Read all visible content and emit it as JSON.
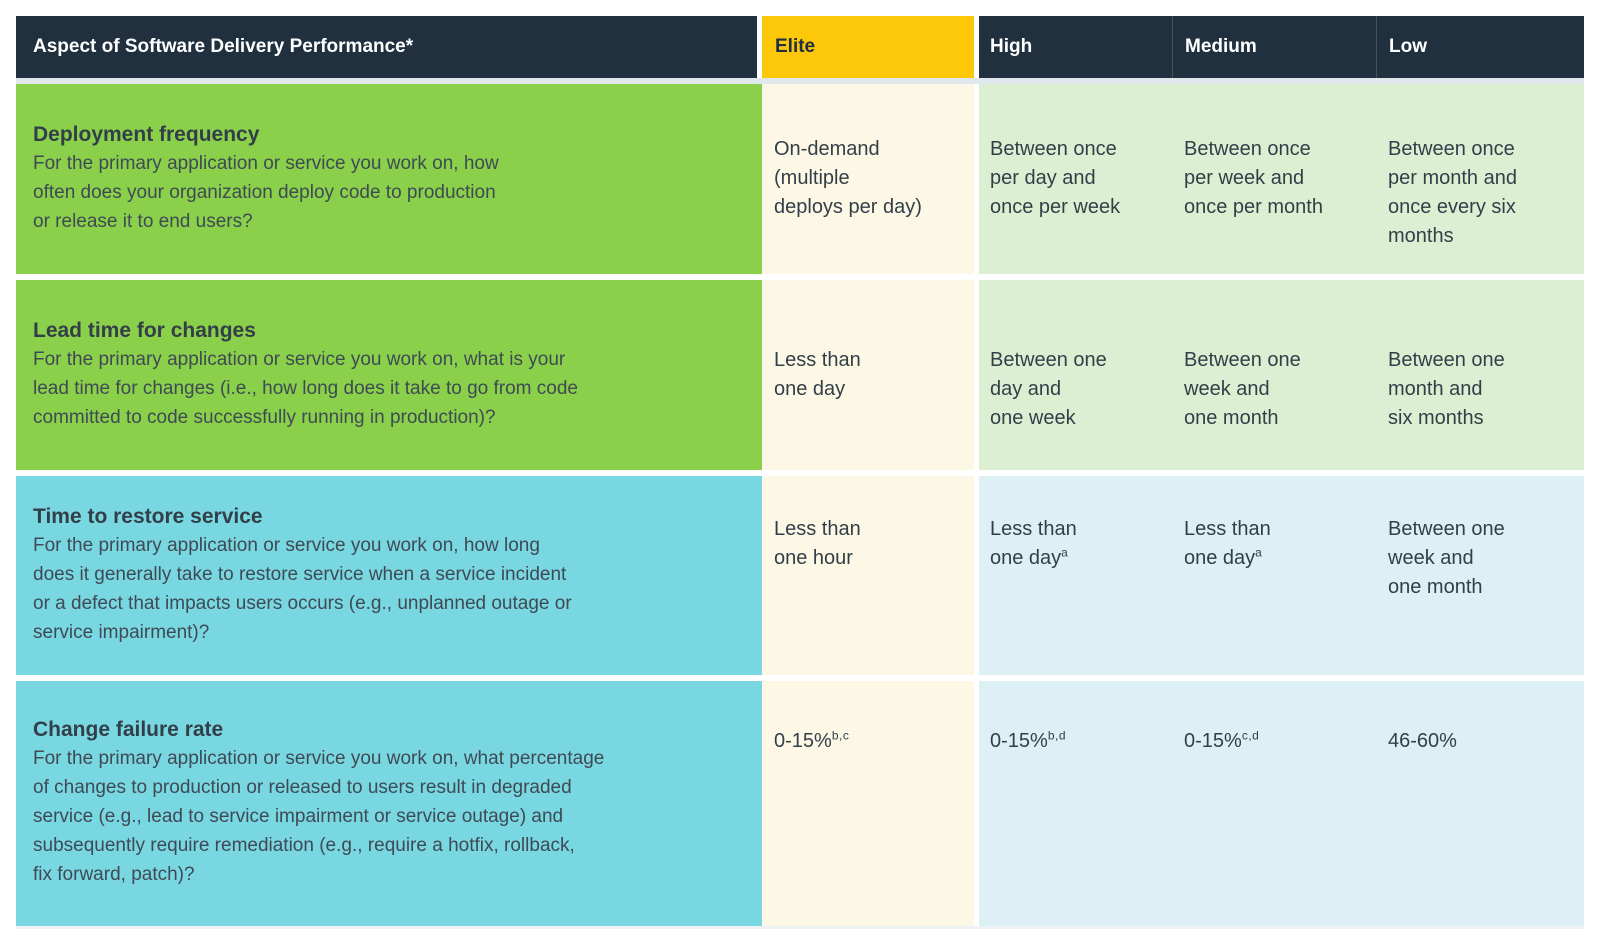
{
  "title": "DORA software delivery performance metrics table",
  "colors": {
    "header_navy": "#20303f",
    "elite_yellow": "#fdc70a",
    "aspect_green": "#8bd04a",
    "aspect_teal": "#79d7e2",
    "elite_cream": "#fdf7e6",
    "cells_light_green": "#ddefd2",
    "cells_light_blue": "#ddf0f5",
    "text_dark": "#333f48",
    "header_text_white": "#ffffff"
  },
  "header": {
    "aspect_label": "Aspect of Software Delivery Performance*",
    "columns": [
      {
        "label": "Elite"
      },
      {
        "label": "High"
      },
      {
        "label": "Medium"
      },
      {
        "label": "Low"
      }
    ]
  },
  "rows": [
    {
      "theme": "green",
      "aspect": {
        "title": "Deployment frequency",
        "description": "For the primary application or service you work on, how\noften does your organization deploy code to production\nor release it to end users?"
      },
      "cells": [
        {
          "text": "On-demand\n(multiple\ndeploys per day)",
          "sup": ""
        },
        {
          "text": "Between once\nper day and\nonce per week",
          "sup": ""
        },
        {
          "text": "Between once\nper week and\nonce per month",
          "sup": ""
        },
        {
          "text": "Between once\nper month and\nonce every six\nmonths",
          "sup": ""
        }
      ]
    },
    {
      "theme": "green",
      "aspect": {
        "title": "Lead time for changes",
        "description": "For the primary application or service you work on, what is your\nlead time for changes (i.e., how long does it take to go from code\ncommitted to code successfully running in production)?"
      },
      "cells": [
        {
          "text": "Less than\none day",
          "sup": ""
        },
        {
          "text": "Between one\nday and\none week",
          "sup": ""
        },
        {
          "text": "Between one\nweek and\none month",
          "sup": ""
        },
        {
          "text": "Between one\nmonth and\nsix months",
          "sup": ""
        }
      ]
    },
    {
      "theme": "teal",
      "aspect": {
        "title": "Time to restore service",
        "description": "For the primary application or service you work on, how long\ndoes it generally take to restore service when a service incident\nor a defect that impacts users occurs (e.g., unplanned outage or\nservice impairment)?"
      },
      "cells": [
        {
          "text": "Less than\none hour",
          "sup": ""
        },
        {
          "text": "Less than\none day",
          "sup": "a"
        },
        {
          "text": "Less than\none day",
          "sup": "a"
        },
        {
          "text": "Between one\nweek and\none month",
          "sup": ""
        }
      ]
    },
    {
      "theme": "teal",
      "aspect": {
        "title": "Change failure rate",
        "description": "For the primary application or service you work on, what percentage\nof changes to production or released to users result in degraded\nservice (e.g., lead to service impairment or service outage) and\nsubsequently require remediation (e.g., require a hotfix, rollback,\nfix forward, patch)?"
      },
      "cells": [
        {
          "text": "0-15%",
          "sup": "b,c"
        },
        {
          "text": "0-15%",
          "sup": "b,d"
        },
        {
          "text": "0-15%",
          "sup": "c,d"
        },
        {
          "text": "46-60%",
          "sup": ""
        }
      ]
    }
  ],
  "chart_data": {
    "type": "table",
    "columns": [
      "Aspect of Software Delivery Performance*",
      "Elite",
      "High",
      "Medium",
      "Low"
    ],
    "rows": [
      [
        "Deployment frequency — For the primary application or service you work on, how often does your organization deploy code to production or release it to end users?",
        "On-demand (multiple deploys per day)",
        "Between once per day and once per week",
        "Between once per week and once per month",
        "Between once per month and once every six months"
      ],
      [
        "Lead time for changes — For the primary application or service you work on, what is your lead time for changes (i.e., how long does it take to go from code committed to code successfully running in production)?",
        "Less than one day",
        "Between one day and one week",
        "Between one week and one month",
        "Between one month and six months"
      ],
      [
        "Time to restore service — For the primary application or service you work on, how long does it generally take to restore service when a service incident or a defect that impacts users occurs (e.g., unplanned outage or service impairment)?",
        "Less than one hour",
        "Less than one day^a",
        "Less than one day^a",
        "Between one week and one month"
      ],
      [
        "Change failure rate — For the primary application or service you work on, what percentage of changes to production or released to users result in degraded service (e.g., lead to service impairment or service outage) and subsequently require remediation (e.g., require a hotfix, rollback, fix forward, patch)?",
        "0-15%^b,c",
        "0-15%^b,d",
        "0-15%^c,d",
        "46-60%"
      ]
    ]
  }
}
